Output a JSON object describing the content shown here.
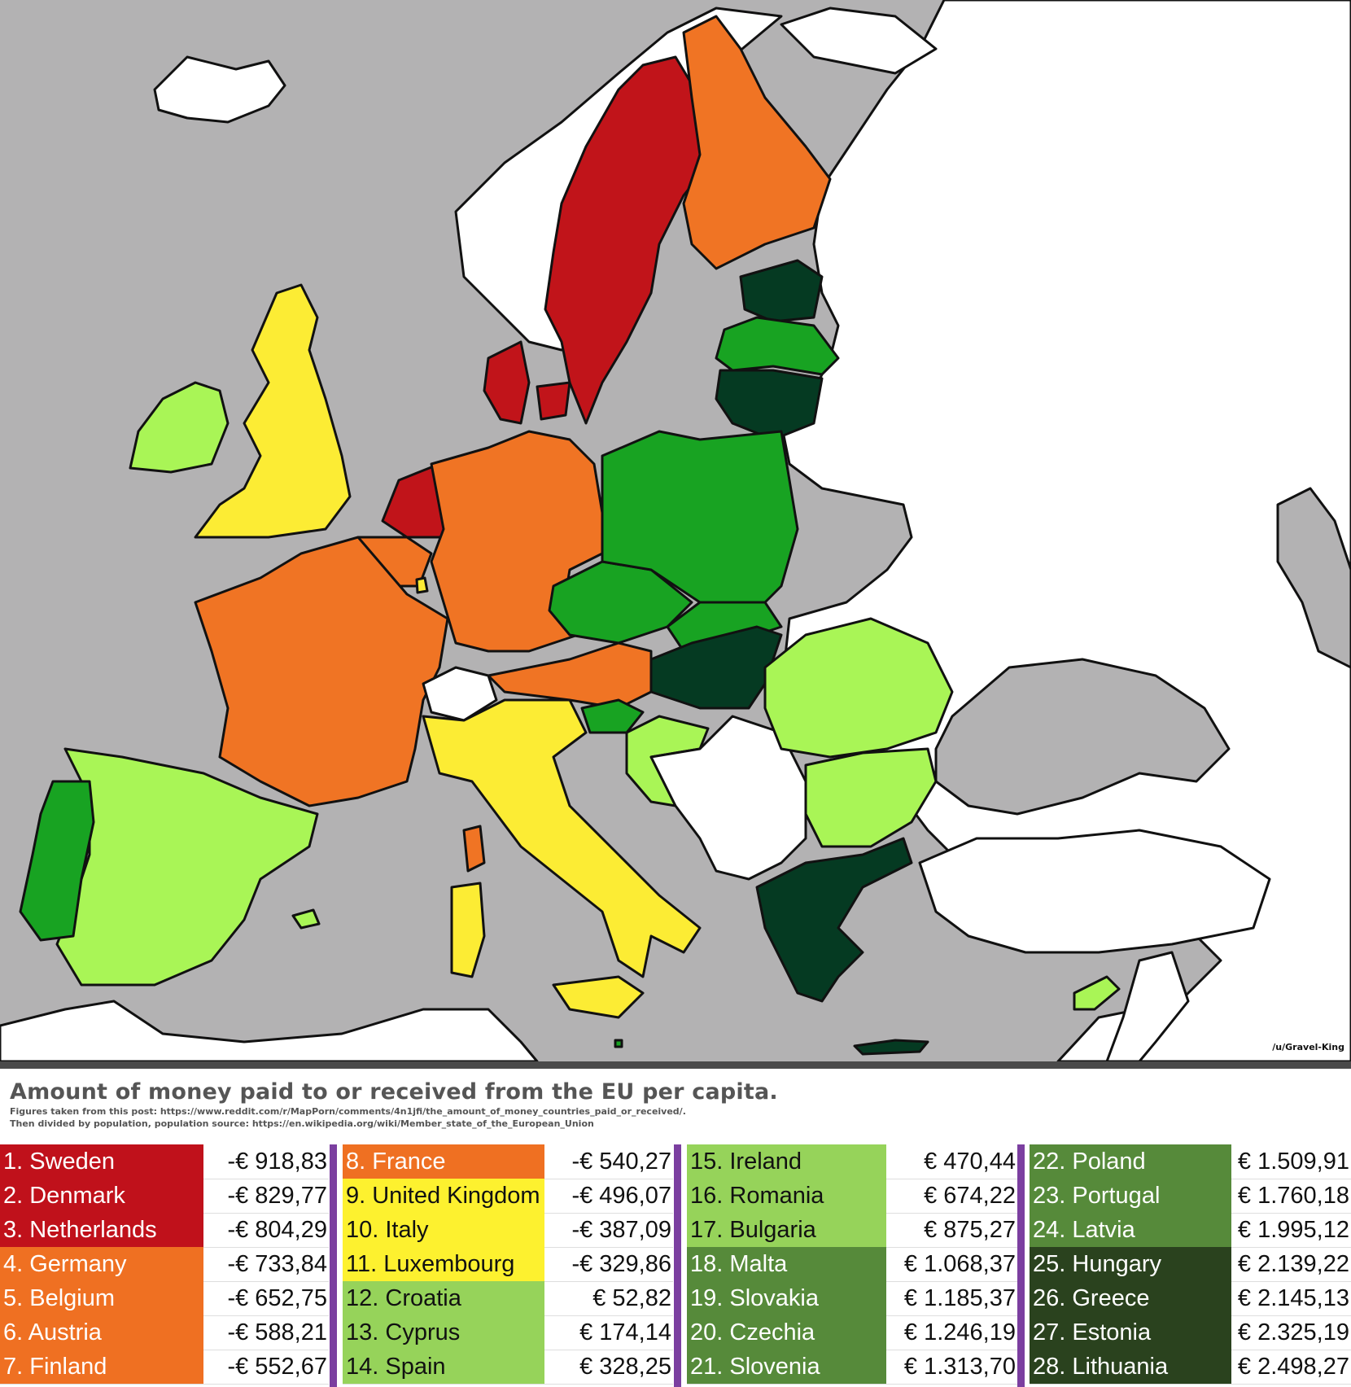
{
  "map": {
    "credit": "/u/Gravel-King",
    "colors": {
      "sea": "#b3b2b3",
      "non_eu": "#ffffff",
      "border": "#111111",
      "red": "#c1141a",
      "orange": "#f07424",
      "yellow": "#fcec34",
      "light_green": "#a9f556",
      "green": "#18a322",
      "dark_green": "#053a22"
    }
  },
  "title": "Amount of money paid to or received from the EU per capita.",
  "subtitle_1": "Figures taken from this post: https://www.reddit.com/r/MapPorn/comments/4n1jfi/the_amount_of_money_countries_paid_or_received/.",
  "subtitle_2": "Then divided by population, population source: https://en.wikipedia.org/wiki/Member_state_of_the_European_Union",
  "legend": [
    {
      "label": "1. Sweden",
      "value": "-€ 918,83",
      "bg": "#c0111b",
      "fg": "#ffffff"
    },
    {
      "label": "2. Denmark",
      "value": "-€ 829,77",
      "bg": "#c0111b",
      "fg": "#ffffff"
    },
    {
      "label": "3. Netherlands",
      "value": "-€ 804,29",
      "bg": "#c0111b",
      "fg": "#ffffff"
    },
    {
      "label": "4. Germany",
      "value": "-€ 733,84",
      "bg": "#ef7022",
      "fg": "#ffffff"
    },
    {
      "label": "5. Belgium",
      "value": "-€ 652,75",
      "bg": "#ef7022",
      "fg": "#ffffff"
    },
    {
      "label": "6. Austria",
      "value": "-€ 588,21",
      "bg": "#ef7022",
      "fg": "#ffffff"
    },
    {
      "label": "7. Finland",
      "value": "-€ 552,67",
      "bg": "#ef7022",
      "fg": "#ffffff"
    },
    {
      "label": "8. France",
      "value": "-€ 540,27",
      "bg": "#ef7022",
      "fg": "#ffffff"
    },
    {
      "label": "9. United Kingdom",
      "value": "-€ 496,07",
      "bg": "#fdf12f",
      "fg": "#111111"
    },
    {
      "label": "10. Italy",
      "value": "-€ 387,09",
      "bg": "#fdf12f",
      "fg": "#111111"
    },
    {
      "label": "11. Luxembourg",
      "value": "-€ 329,86",
      "bg": "#fdf12f",
      "fg": "#111111"
    },
    {
      "label": "12. Croatia",
      "value": "€ 52,82",
      "bg": "#96d35a",
      "fg": "#111111"
    },
    {
      "label": "13. Cyprus",
      "value": "€ 174,14",
      "bg": "#96d35a",
      "fg": "#111111"
    },
    {
      "label": "14. Spain",
      "value": "€ 328,25",
      "bg": "#96d35a",
      "fg": "#111111"
    },
    {
      "label": "15. Ireland",
      "value": "€ 470,44",
      "bg": "#96d35a",
      "fg": "#111111"
    },
    {
      "label": "16. Romania",
      "value": "€ 674,22",
      "bg": "#96d35a",
      "fg": "#111111"
    },
    {
      "label": "17. Bulgaria",
      "value": "€ 875,27",
      "bg": "#96d35a",
      "fg": "#111111"
    },
    {
      "label": "18. Malta",
      "value": "€ 1.068,37",
      "bg": "#568a3a",
      "fg": "#ffffff"
    },
    {
      "label": "19. Slovakia",
      "value": "€ 1.185,37",
      "bg": "#568a3a",
      "fg": "#ffffff"
    },
    {
      "label": "20. Czechia",
      "value": "€ 1.246,19",
      "bg": "#568a3a",
      "fg": "#ffffff"
    },
    {
      "label": "21. Slovenia",
      "value": "€ 1.313,70",
      "bg": "#568a3a",
      "fg": "#ffffff"
    },
    {
      "label": "22. Poland",
      "value": "€ 1.509,91",
      "bg": "#568a3a",
      "fg": "#ffffff"
    },
    {
      "label": "23. Portugal",
      "value": "€ 1.760,18",
      "bg": "#568a3a",
      "fg": "#ffffff"
    },
    {
      "label": "24. Latvia",
      "value": "€ 1.995,12",
      "bg": "#568a3a",
      "fg": "#ffffff"
    },
    {
      "label": "25. Hungary",
      "value": "€ 2.139,22",
      "bg": "#2a421e",
      "fg": "#ffffff"
    },
    {
      "label": "26. Greece",
      "value": "€ 2.145,13",
      "bg": "#2a421e",
      "fg": "#ffffff"
    },
    {
      "label": "27. Estonia",
      "value": "€ 2.325,19",
      "bg": "#2a421e",
      "fg": "#ffffff"
    },
    {
      "label": "28. Lithuania",
      "value": "€ 2.498,27",
      "bg": "#2a421e",
      "fg": "#ffffff"
    }
  ]
}
